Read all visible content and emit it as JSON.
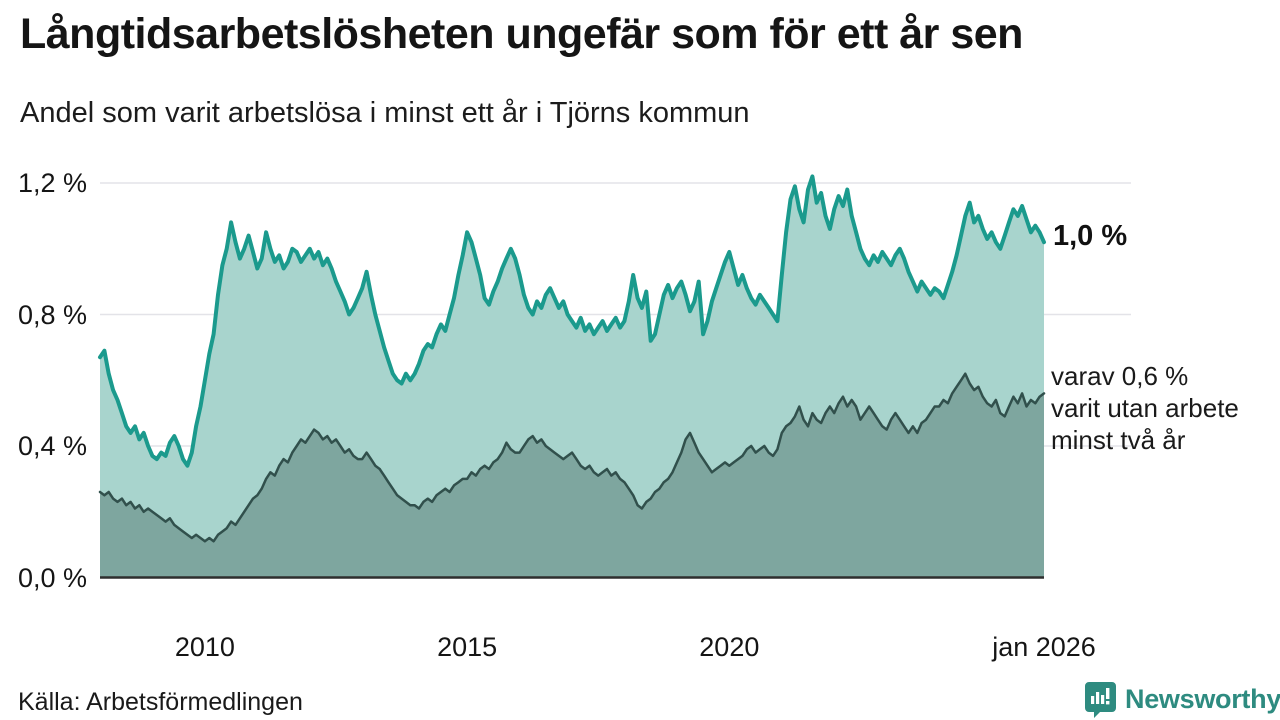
{
  "header": {
    "title": "Långtidsarbetslösheten ungefär som för ett år sen",
    "subtitle": "Andel som varit arbetslösa i minst ett år i Tjörns kommun"
  },
  "chart_data": {
    "type": "area",
    "title": "Långtidsarbetslösheten ungefär som för ett år sen",
    "subtitle": "Andel som varit arbetslösa i minst ett år i Tjörns kommun",
    "ylabel": "",
    "xlabel": "",
    "ylim": [
      0,
      1.2
    ],
    "grid": true,
    "legend_position": "right-annotations",
    "y_ticks": [
      {
        "label": "0,0 %",
        "value": 0.0
      },
      {
        "label": "0,4 %",
        "value": 0.4
      },
      {
        "label": "0,8 %",
        "value": 0.8
      },
      {
        "label": "1,2 %",
        "value": 1.2
      }
    ],
    "x_ticks": [
      {
        "label": "2010",
        "month_index": 24
      },
      {
        "label": "2015",
        "month_index": 84
      },
      {
        "label": "2020",
        "month_index": 144
      },
      {
        "label": "jan 2026",
        "month_index": 216
      }
    ],
    "x_unit": "month",
    "series": [
      {
        "name": "arbetslösa minst ett år",
        "line_color": "#1b9a8d",
        "fill_color": "#a8d4cd",
        "line_width": 4,
        "values": [
          0.67,
          0.69,
          0.62,
          0.57,
          0.54,
          0.5,
          0.46,
          0.44,
          0.46,
          0.42,
          0.44,
          0.4,
          0.37,
          0.36,
          0.38,
          0.37,
          0.41,
          0.43,
          0.4,
          0.36,
          0.34,
          0.38,
          0.46,
          0.52,
          0.6,
          0.68,
          0.74,
          0.86,
          0.95,
          1.0,
          1.08,
          1.02,
          0.97,
          1.0,
          1.04,
          0.99,
          0.94,
          0.97,
          1.05,
          1.0,
          0.96,
          0.98,
          0.94,
          0.96,
          1.0,
          0.99,
          0.96,
          0.98,
          1.0,
          0.97,
          0.99,
          0.95,
          0.97,
          0.94,
          0.9,
          0.87,
          0.84,
          0.8,
          0.82,
          0.85,
          0.88,
          0.93,
          0.86,
          0.8,
          0.75,
          0.7,
          0.66,
          0.62,
          0.6,
          0.59,
          0.62,
          0.6,
          0.62,
          0.65,
          0.69,
          0.71,
          0.7,
          0.74,
          0.77,
          0.75,
          0.8,
          0.85,
          0.92,
          0.98,
          1.05,
          1.02,
          0.97,
          0.92,
          0.85,
          0.83,
          0.87,
          0.9,
          0.94,
          0.97,
          1.0,
          0.97,
          0.92,
          0.86,
          0.82,
          0.8,
          0.84,
          0.82,
          0.86,
          0.88,
          0.85,
          0.82,
          0.84,
          0.8,
          0.78,
          0.76,
          0.79,
          0.75,
          0.77,
          0.74,
          0.76,
          0.78,
          0.75,
          0.77,
          0.79,
          0.76,
          0.78,
          0.84,
          0.92,
          0.85,
          0.82,
          0.87,
          0.72,
          0.74,
          0.8,
          0.86,
          0.89,
          0.85,
          0.88,
          0.9,
          0.86,
          0.81,
          0.84,
          0.9,
          0.74,
          0.78,
          0.84,
          0.88,
          0.92,
          0.96,
          0.99,
          0.94,
          0.89,
          0.92,
          0.88,
          0.85,
          0.83,
          0.86,
          0.84,
          0.82,
          0.8,
          0.78,
          0.92,
          1.05,
          1.15,
          1.19,
          1.12,
          1.08,
          1.18,
          1.22,
          1.14,
          1.17,
          1.1,
          1.06,
          1.12,
          1.16,
          1.13,
          1.18,
          1.1,
          1.05,
          1.0,
          0.97,
          0.95,
          0.98,
          0.96,
          0.99,
          0.97,
          0.95,
          0.98,
          1.0,
          0.97,
          0.93,
          0.9,
          0.87,
          0.9,
          0.88,
          0.86,
          0.88,
          0.87,
          0.85,
          0.89,
          0.93,
          0.98,
          1.04,
          1.1,
          1.14,
          1.08,
          1.1,
          1.06,
          1.03,
          1.05,
          1.02,
          1.0,
          1.04,
          1.08,
          1.12,
          1.1,
          1.13,
          1.09,
          1.05,
          1.07,
          1.05,
          1.02
        ]
      },
      {
        "name": "varav utan arbete minst två år",
        "line_color": "#31504c",
        "fill_color": "#7ea69f",
        "line_width": 2.5,
        "values": [
          0.26,
          0.25,
          0.26,
          0.24,
          0.23,
          0.24,
          0.22,
          0.23,
          0.21,
          0.22,
          0.2,
          0.21,
          0.2,
          0.19,
          0.18,
          0.17,
          0.18,
          0.16,
          0.15,
          0.14,
          0.13,
          0.12,
          0.13,
          0.12,
          0.11,
          0.12,
          0.11,
          0.13,
          0.14,
          0.15,
          0.17,
          0.16,
          0.18,
          0.2,
          0.22,
          0.24,
          0.25,
          0.27,
          0.3,
          0.32,
          0.31,
          0.34,
          0.36,
          0.35,
          0.38,
          0.4,
          0.42,
          0.41,
          0.43,
          0.45,
          0.44,
          0.42,
          0.43,
          0.41,
          0.42,
          0.4,
          0.38,
          0.39,
          0.37,
          0.36,
          0.36,
          0.38,
          0.36,
          0.34,
          0.33,
          0.31,
          0.29,
          0.27,
          0.25,
          0.24,
          0.23,
          0.22,
          0.22,
          0.21,
          0.23,
          0.24,
          0.23,
          0.25,
          0.26,
          0.27,
          0.26,
          0.28,
          0.29,
          0.3,
          0.3,
          0.32,
          0.31,
          0.33,
          0.34,
          0.33,
          0.35,
          0.36,
          0.38,
          0.41,
          0.39,
          0.38,
          0.38,
          0.4,
          0.42,
          0.43,
          0.41,
          0.42,
          0.4,
          0.39,
          0.38,
          0.37,
          0.36,
          0.37,
          0.38,
          0.36,
          0.34,
          0.33,
          0.34,
          0.32,
          0.31,
          0.32,
          0.33,
          0.31,
          0.32,
          0.3,
          0.29,
          0.27,
          0.25,
          0.22,
          0.21,
          0.23,
          0.24,
          0.26,
          0.27,
          0.29,
          0.3,
          0.32,
          0.35,
          0.38,
          0.42,
          0.44,
          0.41,
          0.38,
          0.36,
          0.34,
          0.32,
          0.33,
          0.34,
          0.35,
          0.34,
          0.35,
          0.36,
          0.37,
          0.39,
          0.4,
          0.38,
          0.39,
          0.4,
          0.38,
          0.37,
          0.39,
          0.44,
          0.46,
          0.47,
          0.49,
          0.52,
          0.48,
          0.46,
          0.5,
          0.48,
          0.47,
          0.5,
          0.52,
          0.5,
          0.53,
          0.55,
          0.52,
          0.54,
          0.52,
          0.48,
          0.5,
          0.52,
          0.5,
          0.48,
          0.46,
          0.45,
          0.48,
          0.5,
          0.48,
          0.46,
          0.44,
          0.46,
          0.44,
          0.47,
          0.48,
          0.5,
          0.52,
          0.52,
          0.54,
          0.53,
          0.56,
          0.58,
          0.6,
          0.62,
          0.59,
          0.57,
          0.58,
          0.55,
          0.53,
          0.52,
          0.54,
          0.5,
          0.49,
          0.52,
          0.55,
          0.53,
          0.56,
          0.52,
          0.54,
          0.53,
          0.55,
          0.56
        ]
      }
    ],
    "annotations": {
      "total_end_label": "1,0 %",
      "two_year_end_label": "varav 0,6 %\nvarit utan arbete\nminst två år"
    },
    "colors": {
      "gridline": "#e3e3e8",
      "baseline": "#2e2e2e",
      "teal_line": "#1b9a8d",
      "teal_fill": "#a8d4cd",
      "dark_line": "#31504c",
      "dark_fill": "#7ea69f"
    }
  },
  "footer": {
    "source": "Källa: Arbetsförmedlingen",
    "brand": "Newsworthy"
  }
}
